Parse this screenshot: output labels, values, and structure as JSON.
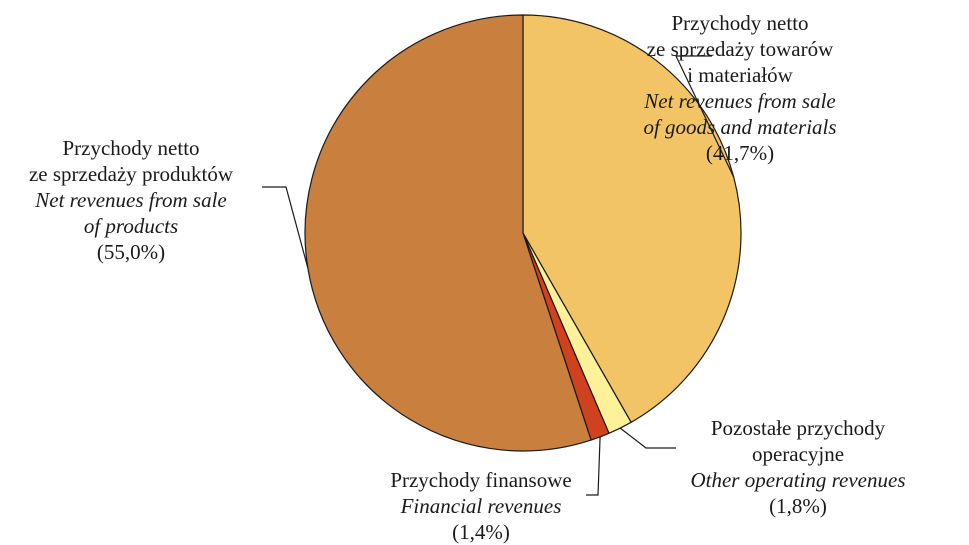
{
  "chart_data": {
    "type": "pie",
    "slices": [
      {
        "name_pl": [
          "Przychody netto",
          "ze sprzedaży towarów",
          "i materiałów"
        ],
        "name_en": [
          "Net revenues from sale",
          "of goods and materials"
        ],
        "value": 41.7,
        "pct_label": "(41,7%)",
        "color": "#F2C465"
      },
      {
        "name_pl": [
          "Pozostałe przychody",
          "operacyjne"
        ],
        "name_en": [
          "Other operating revenues"
        ],
        "value": 1.8,
        "pct_label": "(1,8%)",
        "color": "#FFF199"
      },
      {
        "name_pl": [
          "Przychody finansowe"
        ],
        "name_en": [
          "Financial revenues"
        ],
        "value": 1.4,
        "pct_label": "(1,4%)",
        "color": "#D0421D"
      },
      {
        "name_pl": [
          "Przychody netto",
          "ze sprzedaży produktów"
        ],
        "name_en": [
          "Net revenues from sale",
          "of products"
        ],
        "value": 55.0,
        "pct_label": "(55,0%)",
        "color": "#C97F3D"
      }
    ],
    "start": "12 o'clock",
    "direction": "clockwise",
    "stroke_color": "#1a1a1a"
  }
}
